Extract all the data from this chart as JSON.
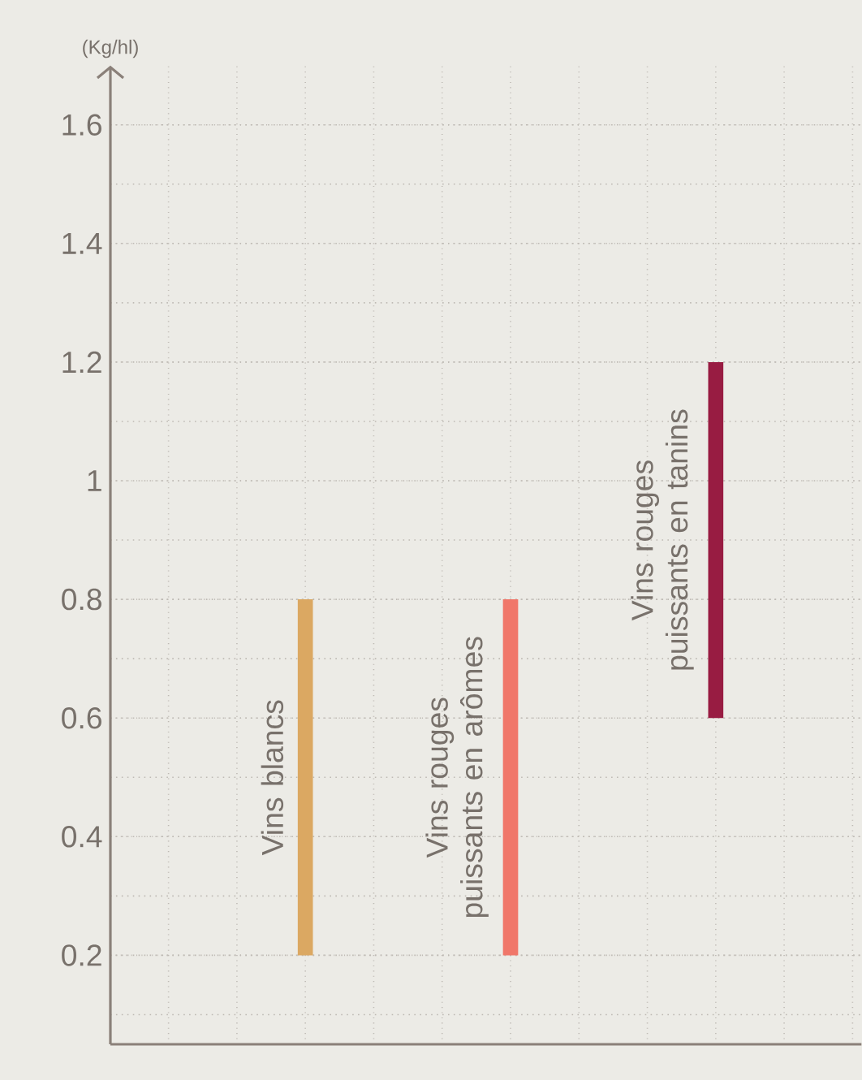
{
  "chart_data": {
    "type": "bar",
    "categories": [
      "Vins blancs",
      "Vins rouges puissants en arômes",
      "Vins rouges puissants en tanins"
    ],
    "base": [
      0.2,
      0.2,
      0.6
    ],
    "values": [
      0.6,
      0.6,
      0.6
    ],
    "colors": [
      "#dba862",
      "#f0776a",
      "#981c42"
    ],
    "ylabel": "(Kg/hl)",
    "ylim": [
      0.05,
      1.7
    ],
    "yticks": [
      0.2,
      0.4,
      0.6,
      0.8,
      1,
      1.2,
      1.4,
      1.6
    ],
    "grid": true
  }
}
